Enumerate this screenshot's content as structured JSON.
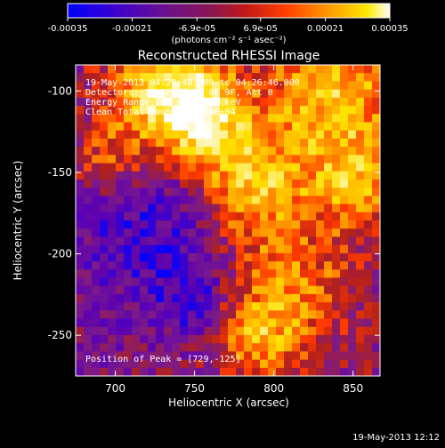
{
  "footer_timestamp": "19-May-2013 12:12",
  "colorbar": {
    "ticks": [
      "-0.00035",
      "-0.00021",
      "-6.9e-05",
      "6.9e-05",
      "0.00021",
      "0.00035"
    ],
    "tick_values": [
      -0.00035,
      -0.00021,
      -6.9e-05,
      6.9e-05,
      0.00021,
      0.00035
    ],
    "range": [
      -0.00035,
      0.00035
    ],
    "unit_label": "(photons cm⁻² s⁻¹ asec⁻²)",
    "colors": [
      "#0000ff",
      "#5a00b4",
      "#7a1a8a",
      "#b0201e",
      "#ff3a00",
      "#ff9a00",
      "#ffe000",
      "#ffffff"
    ]
  },
  "chart_data": {
    "type": "heatmap",
    "title": "Reconstructed RHESSI Image",
    "xlabel": "Heliocentric X (arcsec)",
    "ylabel": "Heliocentric Y (arcsec)",
    "xlim": [
      675,
      867
    ],
    "ylim": [
      -275,
      -84
    ],
    "xticks": [
      700,
      750,
      800,
      850
    ],
    "yticks": [
      -100,
      -150,
      -200,
      -250
    ],
    "annotations": [
      "19-May-2013 04:20:48.000 to 04:26:46.000",
      "Detectors: 3F 5F 6F 7F 8F 9F, Att 0",
      "Energy Range: 12.0 - 25.0 keV",
      "Clean     Total counts: 1.14E+04"
    ],
    "peak_label": "Position of Peak = [729,-125]",
    "peak": [
      729,
      -125
    ],
    "grid": false
  }
}
